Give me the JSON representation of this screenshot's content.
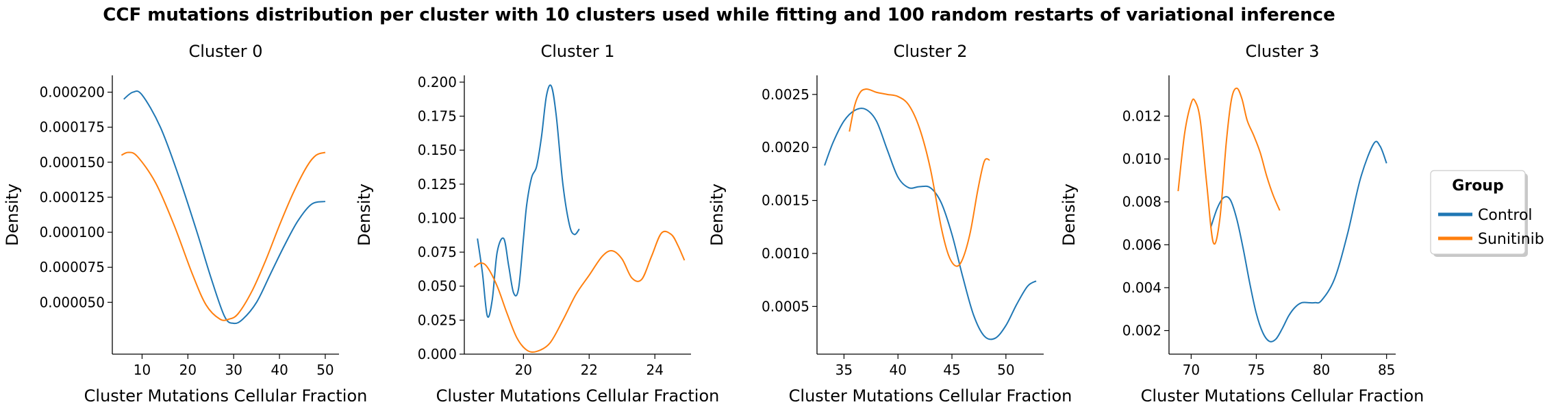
{
  "figure": {
    "title": "CCF mutations distribution per cluster with 10 clusters used while fitting and 100 random restarts of variational inference"
  },
  "legend": {
    "title": "Group",
    "entries": [
      {
        "label": "Control",
        "color": "#1f77b4"
      },
      {
        "label": "Sunitinib",
        "color": "#ff7f0e"
      }
    ],
    "placement": "right, outside plots"
  },
  "chart_data": [
    {
      "type": "line",
      "title": "Cluster 0",
      "xlabel": "Cluster Mutations Cellular Fraction",
      "ylabel": "Density",
      "xlim": [
        3.5,
        53
      ],
      "ylim": [
        1.3e-05,
        0.000212
      ],
      "xticks": [
        10,
        20,
        30,
        40,
        50
      ],
      "xtick_labels": [
        "10",
        "20",
        "30",
        "40",
        "50"
      ],
      "yticks": [
        5e-05,
        7.5e-05,
        0.0001,
        0.000125,
        0.00015,
        0.000175,
        0.0002
      ],
      "ytick_labels": [
        "0.000050",
        "0.000075",
        "0.000100",
        "0.000125",
        "0.000150",
        "0.000175",
        "0.000200"
      ],
      "grid": false,
      "series": [
        {
          "name": "Control",
          "color": "#1f77b4",
          "x": [
            6,
            8,
            10,
            14,
            18,
            22,
            25,
            28,
            30,
            32,
            35,
            38,
            41,
            44,
            47,
            50
          ],
          "y": [
            0.000195,
            0.0002,
            0.000198,
            0.000175,
            0.00014,
            0.0001,
            6.8e-05,
            4e-05,
            3.5e-05,
            3.8e-05,
            5e-05,
            7e-05,
            9e-05,
            0.000108,
            0.00012,
            0.000122
          ]
        },
        {
          "name": "Sunitinib",
          "color": "#ff7f0e",
          "x": [
            5.5,
            7,
            9,
            13,
            17,
            21,
            24,
            27,
            29,
            31,
            34,
            37,
            40,
            43,
            46,
            48,
            50
          ],
          "y": [
            0.000155,
            0.000157,
            0.000154,
            0.000135,
            0.000105,
            7e-05,
            4.8e-05,
            3.8e-05,
            3.8e-05,
            4.2e-05,
            5.8e-05,
            8e-05,
            0.000105,
            0.000128,
            0.000147,
            0.000155,
            0.000157
          ]
        }
      ]
    },
    {
      "type": "line",
      "title": "Cluster 1",
      "xlabel": "Cluster Mutations Cellular Fraction",
      "ylabel": "Density",
      "xlim": [
        18.2,
        25.1
      ],
      "ylim": [
        0,
        0.205
      ],
      "xticks": [
        20,
        22,
        24
      ],
      "xtick_labels": [
        "20",
        "22",
        "24"
      ],
      "yticks": [
        0,
        0.025,
        0.05,
        0.075,
        0.1,
        0.125,
        0.15,
        0.175,
        0.2
      ],
      "ytick_labels": [
        "0.000",
        "0.025",
        "0.050",
        "0.075",
        "0.100",
        "0.125",
        "0.150",
        "0.175",
        "0.200"
      ],
      "grid": false,
      "series": [
        {
          "name": "Control",
          "color": "#1f77b4",
          "x": [
            18.6,
            18.75,
            18.9,
            19.05,
            19.2,
            19.4,
            19.55,
            19.7,
            19.85,
            20.0,
            20.1,
            20.25,
            20.4,
            20.55,
            20.7,
            20.85,
            21.0,
            21.2,
            21.4,
            21.55,
            21.7
          ],
          "y": [
            0.085,
            0.06,
            0.028,
            0.04,
            0.075,
            0.085,
            0.065,
            0.045,
            0.048,
            0.085,
            0.11,
            0.13,
            0.138,
            0.16,
            0.19,
            0.197,
            0.175,
            0.125,
            0.095,
            0.088,
            0.092
          ]
        },
        {
          "name": "Sunitinib",
          "color": "#ff7f0e",
          "x": [
            18.5,
            18.7,
            18.9,
            19.2,
            19.5,
            19.8,
            20.1,
            20.4,
            20.8,
            21.2,
            21.6,
            22.0,
            22.4,
            22.7,
            23.0,
            23.3,
            23.6,
            23.9,
            24.2,
            24.5,
            24.7,
            24.9
          ],
          "y": [
            0.064,
            0.067,
            0.064,
            0.05,
            0.03,
            0.012,
            0.003,
            0.002,
            0.008,
            0.025,
            0.044,
            0.058,
            0.072,
            0.076,
            0.07,
            0.056,
            0.055,
            0.072,
            0.089,
            0.088,
            0.08,
            0.069
          ]
        }
      ]
    },
    {
      "type": "line",
      "title": "Cluster 2",
      "xlabel": "Cluster Mutations Cellular Fraction",
      "ylabel": "Density",
      "xlim": [
        32.5,
        53.5
      ],
      "ylim": [
        5e-05,
        0.00268
      ],
      "xticks": [
        35,
        40,
        45,
        50
      ],
      "xtick_labels": [
        "35",
        "40",
        "45",
        "50"
      ],
      "yticks": [
        0.0005,
        0.001,
        0.0015,
        0.002,
        0.0025
      ],
      "ytick_labels": [
        "0.0005",
        "0.0010",
        "0.0015",
        "0.0020",
        "0.0025"
      ],
      "grid": false,
      "series": [
        {
          "name": "Control",
          "color": "#1f77b4",
          "x": [
            33.2,
            34.0,
            35.0,
            36.0,
            37.0,
            38.0,
            39.0,
            40.0,
            41.0,
            42.0,
            43.0,
            44.0,
            45.0,
            46.0,
            47.0,
            48.0,
            49.0,
            50.0,
            51.0,
            52.0,
            52.8
          ],
          "y": [
            0.00183,
            0.00205,
            0.00225,
            0.00235,
            0.00236,
            0.00225,
            0.00198,
            0.00172,
            0.00162,
            0.00163,
            0.00162,
            0.00148,
            0.00118,
            0.00078,
            0.00042,
            0.00022,
            0.0002,
            0.00032,
            0.00052,
            0.00069,
            0.00074
          ]
        },
        {
          "name": "Sunitinib",
          "color": "#ff7f0e",
          "x": [
            35.5,
            36.0,
            36.5,
            37.0,
            37.5,
            38.0,
            39.0,
            40.0,
            41.0,
            42.0,
            43.0,
            44.0,
            44.7,
            45.4,
            46.0,
            46.7,
            47.4,
            48.0,
            48.5
          ],
          "y": [
            0.00215,
            0.0024,
            0.00252,
            0.00255,
            0.00254,
            0.00252,
            0.0025,
            0.00248,
            0.0024,
            0.00218,
            0.0018,
            0.00125,
            0.00098,
            0.00088,
            0.00095,
            0.0012,
            0.0016,
            0.00187,
            0.00188
          ]
        }
      ]
    },
    {
      "type": "line",
      "title": "Cluster 3",
      "xlabel": "Cluster Mutations Cellular Fraction",
      "ylabel": "Density",
      "xlim": [
        68.3,
        85.7
      ],
      "ylim": [
        0.0009,
        0.0139
      ],
      "xticks": [
        70,
        75,
        80,
        85
      ],
      "xtick_labels": [
        "70",
        "75",
        "80",
        "85"
      ],
      "yticks": [
        0.002,
        0.004,
        0.006,
        0.008,
        0.01,
        0.012
      ],
      "ytick_labels": [
        "0.002",
        "0.004",
        "0.006",
        "0.008",
        "0.010",
        "0.012"
      ],
      "grid": false,
      "series": [
        {
          "name": "Control",
          "color": "#1f77b4",
          "x": [
            71.5,
            72.0,
            72.5,
            73.0,
            73.5,
            74.0,
            74.5,
            75.0,
            75.5,
            76.0,
            76.5,
            77.0,
            77.5,
            78.0,
            78.5,
            79.0,
            79.5,
            80.0,
            81.0,
            82.0,
            83.0,
            84.0,
            84.5,
            85.0
          ],
          "y": [
            0.0068,
            0.0077,
            0.0082,
            0.0081,
            0.0072,
            0.0058,
            0.0042,
            0.0028,
            0.0019,
            0.0015,
            0.0016,
            0.0021,
            0.0027,
            0.0031,
            0.0033,
            0.0033,
            0.0033,
            0.0034,
            0.0044,
            0.0065,
            0.0091,
            0.0107,
            0.0106,
            0.0098
          ]
        },
        {
          "name": "Sunitinib",
          "color": "#ff7f0e",
          "x": [
            69.0,
            69.5,
            70.0,
            70.3,
            70.7,
            71.2,
            71.7,
            72.2,
            72.7,
            73.1,
            73.5,
            73.9,
            74.3,
            74.8,
            75.3,
            75.8,
            76.3,
            76.8
          ],
          "y": [
            0.0085,
            0.0112,
            0.0126,
            0.0127,
            0.0118,
            0.0088,
            0.0061,
            0.0072,
            0.0108,
            0.0128,
            0.0133,
            0.0128,
            0.0118,
            0.0111,
            0.0103,
            0.0092,
            0.0083,
            0.0076
          ]
        }
      ]
    }
  ]
}
